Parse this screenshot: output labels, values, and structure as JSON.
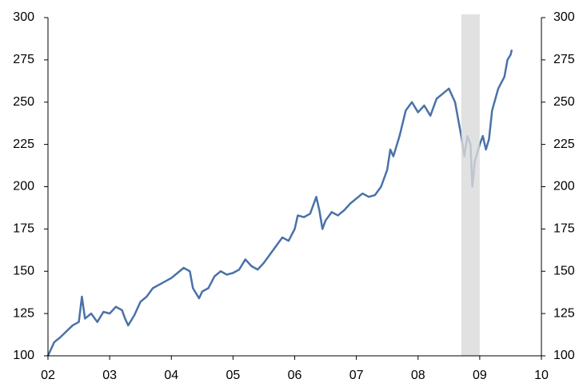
{
  "chart_data": {
    "type": "line",
    "x": [
      2002.0,
      2002.1,
      2002.2,
      2002.4,
      2002.5,
      2002.55,
      2002.6,
      2002.7,
      2002.8,
      2002.9,
      2003.0,
      2003.1,
      2003.2,
      2003.25,
      2003.3,
      2003.4,
      2003.5,
      2003.6,
      2003.7,
      2003.8,
      2003.9,
      2004.0,
      2004.1,
      2004.2,
      2004.3,
      2004.35,
      2004.45,
      2004.5,
      2004.6,
      2004.7,
      2004.8,
      2004.9,
      2005.0,
      2005.1,
      2005.2,
      2005.3,
      2005.4,
      2005.5,
      2005.6,
      2005.7,
      2005.8,
      2005.9,
      2006.0,
      2006.05,
      2006.15,
      2006.25,
      2006.35,
      2006.4,
      2006.45,
      2006.5,
      2006.6,
      2006.7,
      2006.8,
      2006.9,
      2007.0,
      2007.1,
      2007.2,
      2007.3,
      2007.4,
      2007.5,
      2007.55,
      2007.6,
      2007.7,
      2007.8,
      2007.9,
      2008.0,
      2008.1,
      2008.2,
      2008.3,
      2008.4,
      2008.5,
      2008.6,
      2008.65,
      2008.7,
      2008.75,
      2008.8,
      2008.85,
      2008.88,
      2008.92,
      2009.0,
      2009.05,
      2009.1,
      2009.15,
      2009.2,
      2009.3,
      2009.4,
      2009.45,
      2009.5,
      2009.52
    ],
    "values": [
      100,
      108,
      111,
      118,
      120,
      135,
      122,
      125,
      120,
      126,
      125,
      129,
      127,
      122,
      118,
      124,
      132,
      135,
      140,
      142,
      144,
      146,
      149,
      152,
      150,
      140,
      134,
      138,
      140,
      147,
      150,
      148,
      149,
      151,
      157,
      153,
      151,
      155,
      160,
      165,
      170,
      168,
      175,
      183,
      182,
      184,
      194,
      186,
      175,
      180,
      185,
      183,
      186,
      190,
      193,
      196,
      194,
      195,
      200,
      210,
      222,
      218,
      230,
      245,
      250,
      244,
      248,
      242,
      252,
      255,
      258,
      250,
      240,
      230,
      218,
      230,
      225,
      200,
      215,
      225,
      230,
      222,
      228,
      245,
      258,
      265,
      275,
      278,
      281
    ],
    "color": "#4a72a8",
    "shade": [
      2008.7,
      2009.0
    ],
    "shade_color": "#d9d9d9",
    "xlim": [
      2002,
      2010
    ],
    "xticks": [
      {
        "value": 2002,
        "label": "02"
      },
      {
        "value": 2003,
        "label": "03"
      },
      {
        "value": 2004,
        "label": "04"
      },
      {
        "value": 2005,
        "label": "05"
      },
      {
        "value": 2006,
        "label": "06"
      },
      {
        "value": 2007,
        "label": "07"
      },
      {
        "value": 2008,
        "label": "08"
      },
      {
        "value": 2009,
        "label": "09"
      },
      {
        "value": 2010,
        "label": "10"
      }
    ],
    "ylim": [
      100,
      300
    ],
    "yticks": [
      100,
      125,
      150,
      175,
      200,
      225,
      250,
      275,
      300
    ],
    "y2lim": [
      100,
      300
    ],
    "y2ticks": [
      100,
      125,
      150,
      175,
      200,
      225,
      250,
      275,
      300
    ]
  }
}
